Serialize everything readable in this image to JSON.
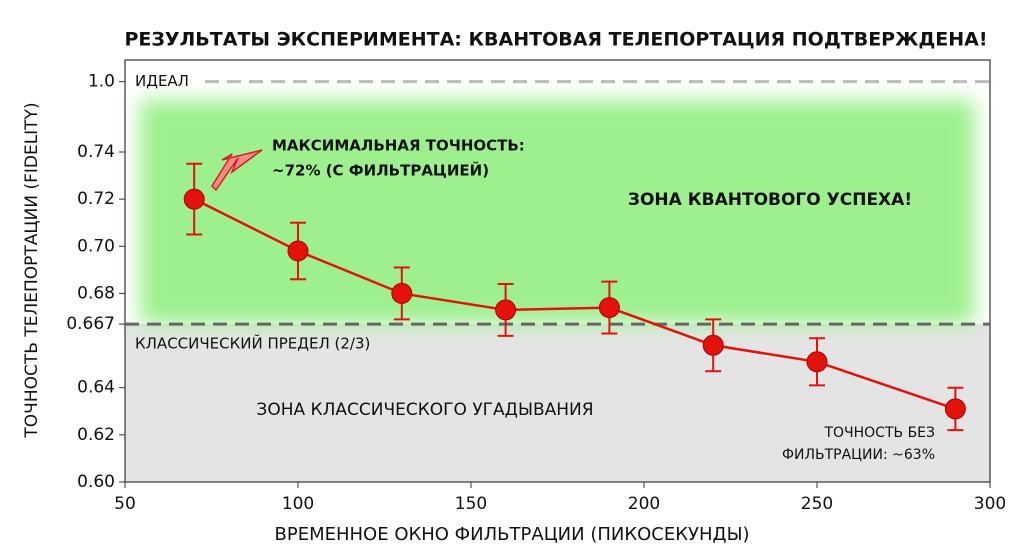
{
  "chart_data": {
    "type": "errorbar-line",
    "title": "РЕЗУЛЬТАТЫ ЭКСПЕРИМЕНТА: КВАНТОВАЯ ТЕЛЕПОРТАЦИЯ ПОДТВЕРЖДЕНА!",
    "x_label": "ВРЕМЕННОЕ ОКНО ФИЛЬТРАЦИИ (ПИКОСЕКУНДЫ)",
    "y_label": "ТОЧНОСТЬ ТЕЛЕПОРТАЦИИ (FIDELITY)",
    "x": [
      70,
      100,
      130,
      160,
      190,
      220,
      250,
      290
    ],
    "values": [
      0.72,
      0.698,
      0.68,
      0.673,
      0.674,
      0.658,
      0.651,
      0.631
    ],
    "errors": [
      0.015,
      0.012,
      0.011,
      0.011,
      0.011,
      0.011,
      0.01,
      0.009
    ],
    "color": "#e3120b",
    "xlim": [
      50,
      300
    ],
    "xticks": [
      50,
      100,
      150,
      200,
      250,
      300
    ],
    "ylim": [
      0.6,
      1.08
    ],
    "yticks": [
      {
        "value": 0.6,
        "label": "0.60"
      },
      0.62,
      0.64,
      0.667,
      0.68,
      {
        "value": 0.7,
        "label": "0.70"
      },
      0.72,
      0.74,
      {
        "value": 1.0,
        "label": "1.0"
      }
    ],
    "reference_lines": [
      {
        "value": 1.0,
        "label": "ИДЕАЛ"
      },
      {
        "value": 0.667,
        "label": "КЛАССИЧЕСКИЙ ПРЕДЕЛ (2/3)"
      }
    ],
    "zones": [
      "ЗОНА КВАНТОВОГО УСПЕХА!",
      "ЗОНА КЛАССИЧЕСКОГО УГАДЫВАНИЯ"
    ],
    "annotations": [
      [
        "МАКСИМАЛЬНАЯ ТОЧНОСТЬ:",
        "~72% (С ФИЛЬТРАЦИЕЙ)"
      ],
      [
        "ТОЧНОСТЬ БЕЗ",
        "ФИЛЬТРАЦИИ: ~63%"
      ]
    ]
  }
}
